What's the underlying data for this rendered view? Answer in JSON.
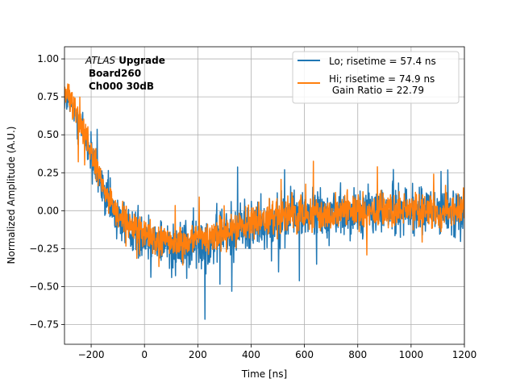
{
  "chart_data": {
    "type": "line",
    "title": "",
    "xlabel": "Time [ns]",
    "ylabel": "Normalized Amplitude (A.U.)",
    "xlim": [
      -300,
      1200
    ],
    "ylim": [
      -0.88,
      1.08
    ],
    "xticks": [
      -200,
      0,
      200,
      400,
      600,
      800,
      1000,
      1200
    ],
    "yticks": [
      -0.75,
      -0.5,
      -0.25,
      0.0,
      0.25,
      0.5,
      0.75,
      1.0
    ],
    "xtick_labels": [
      "−200",
      "0",
      "200",
      "400",
      "600",
      "800",
      "1000",
      "1200"
    ],
    "ytick_labels": [
      "−0.75",
      "−0.50",
      "−0.25",
      "0.00",
      "0.25",
      "0.50",
      "0.75",
      "1.00"
    ],
    "grid": true,
    "legend_position": "top-right",
    "annotation": {
      "atlas": "ATLAS",
      "upgrade": "Upgrade",
      "board": "Board260",
      "channel": "Ch000 30dB"
    },
    "series": [
      {
        "name": "Lo; risetime = 57.4 ns",
        "color": "#1f77b4",
        "x": [
          -300,
          -250,
          -200,
          -150,
          -100,
          -50,
          0,
          50,
          100,
          150,
          200,
          250,
          300,
          350,
          400,
          450,
          500,
          550,
          600,
          650,
          700,
          750,
          800,
          850,
          900,
          950,
          1000,
          1050,
          1100,
          1150,
          1200
        ],
        "y": [
          0.75,
          0.62,
          0.35,
          0.1,
          -0.05,
          -0.12,
          -0.17,
          -0.2,
          -0.22,
          -0.23,
          -0.22,
          -0.19,
          -0.15,
          -0.12,
          -0.09,
          -0.07,
          -0.05,
          -0.04,
          -0.03,
          -0.02,
          -0.02,
          -0.01,
          -0.01,
          0.0,
          0.0,
          0.0,
          0.0,
          0.0,
          0.0,
          0.0,
          0.0
        ],
        "noise": [
          0.06,
          0.1,
          0.1,
          0.1,
          0.11,
          0.11,
          0.11,
          0.12,
          0.12,
          0.13,
          0.13,
          0.13,
          0.13,
          0.13,
          0.12,
          0.12,
          0.12,
          0.11,
          0.11,
          0.11,
          0.11,
          0.11,
          0.11,
          0.11,
          0.11,
          0.11,
          0.11,
          0.11,
          0.11,
          0.11,
          0.11
        ]
      },
      {
        "name": "Hi; risetime = 74.9 ns\n Gain Ratio = 22.79",
        "color": "#ff7f0e",
        "x": [
          -300,
          -250,
          -200,
          -150,
          -100,
          -50,
          0,
          50,
          100,
          150,
          200,
          250,
          300,
          350,
          400,
          450,
          500,
          550,
          600,
          650,
          700,
          750,
          800,
          850,
          900,
          950,
          1000,
          1050,
          1100,
          1150,
          1200
        ],
        "y": [
          0.78,
          0.65,
          0.38,
          0.12,
          -0.03,
          -0.1,
          -0.15,
          -0.18,
          -0.2,
          -0.21,
          -0.2,
          -0.17,
          -0.14,
          -0.11,
          -0.08,
          -0.06,
          -0.05,
          -0.04,
          -0.03,
          -0.02,
          -0.02,
          -0.01,
          -0.01,
          0.0,
          0.0,
          0.0,
          0.0,
          0.0,
          0.0,
          0.0,
          0.0
        ],
        "noise": [
          0.06,
          0.07,
          0.07,
          0.07,
          0.07,
          0.07,
          0.08,
          0.08,
          0.08,
          0.08,
          0.08,
          0.08,
          0.08,
          0.08,
          0.08,
          0.08,
          0.08,
          0.08,
          0.08,
          0.08,
          0.08,
          0.08,
          0.08,
          0.08,
          0.08,
          0.08,
          0.08,
          0.08,
          0.08,
          0.08,
          0.08
        ]
      }
    ]
  }
}
